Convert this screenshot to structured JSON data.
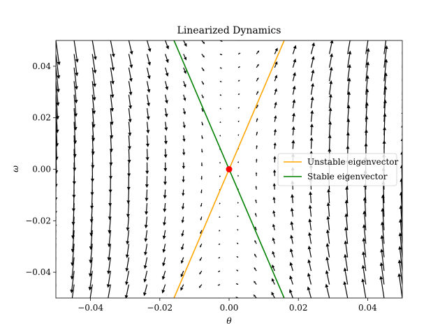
{
  "chart_data": {
    "type": "quiver",
    "title": "Linearized Dynamics",
    "xlabel": "θ",
    "ylabel": "ω",
    "xlim": [
      -0.05,
      0.05
    ],
    "ylim": [
      -0.05,
      0.05
    ],
    "xticks": [
      -0.04,
      -0.02,
      0.0,
      0.02,
      0.04
    ],
    "xtick_labels": [
      "−0.04",
      "−0.02",
      "0.00",
      "0.02",
      "0.04"
    ],
    "yticks": [
      -0.04,
      -0.02,
      0.0,
      0.02,
      0.04
    ],
    "ytick_labels": [
      "−0.04",
      "−0.02",
      "0.00",
      "0.02",
      "0.04"
    ],
    "grid": false,
    "legend_position": "center-right",
    "vector_field": {
      "description": "linear system dθ/dt = ω, dω/dt = a·θ",
      "a": 9.8,
      "grid_n": 20,
      "range": [
        -0.05,
        0.05
      ]
    },
    "series": [
      {
        "name": "Unstable eigenvector",
        "kind": "line",
        "color": "#FFA500",
        "x": [
          -0.0159,
          0.0159
        ],
        "y": [
          -0.05,
          0.05
        ]
      },
      {
        "name": "Stable eigenvector",
        "kind": "line",
        "color": "#008000",
        "x": [
          -0.0159,
          0.0159
        ],
        "y": [
          0.05,
          -0.05
        ]
      }
    ],
    "fixed_point": {
      "x": 0.0,
      "y": 0.0,
      "color": "#FF0000"
    }
  }
}
